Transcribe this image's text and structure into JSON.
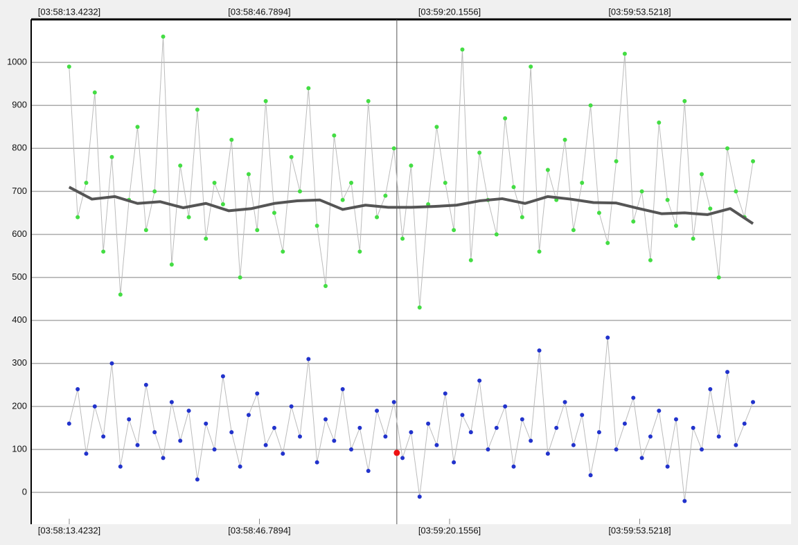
{
  "chart_data": {
    "type": "scatter",
    "xlim": [
      14286.74,
      14420.08
    ],
    "xticks": [
      {
        "value": 14293.4232,
        "label": "[03:58:13.4232]"
      },
      {
        "value": 14326.7894,
        "label": "[03:58:46.7894]"
      },
      {
        "value": 14360.1556,
        "label": "[03:59:20.1556]"
      },
      {
        "value": 14393.5218,
        "label": "[03:59:53.5218]"
      }
    ],
    "ylim": [
      -74,
      1100
    ],
    "yticks": [
      0,
      100,
      200,
      300,
      400,
      500,
      600,
      700,
      800,
      900,
      1000
    ],
    "grid": true,
    "line_color": "#bbbbbb",
    "x": [
      14293.4,
      14294.9,
      14296.4,
      14297.9,
      14299.4,
      14300.9,
      14302.4,
      14303.9,
      14305.4,
      14306.9,
      14308.4,
      14309.9,
      14311.4,
      14312.9,
      14314.4,
      14315.9,
      14317.4,
      14318.9,
      14320.4,
      14321.9,
      14323.4,
      14324.9,
      14326.4,
      14327.9,
      14329.4,
      14330.9,
      14332.4,
      14333.9,
      14335.4,
      14336.9,
      14338.4,
      14339.9,
      14341.4,
      14342.9,
      14344.4,
      14345.9,
      14347.4,
      14348.9,
      14350.4,
      14351.9,
      14353.4,
      14354.9,
      14356.4,
      14357.9,
      14359.4,
      14360.9,
      14362.4,
      14363.9,
      14365.4,
      14366.9,
      14368.4,
      14369.9,
      14371.4,
      14372.9,
      14374.4,
      14375.9,
      14377.4,
      14378.9,
      14380.4,
      14381.9,
      14383.4,
      14384.9,
      14386.4,
      14387.9,
      14389.4,
      14390.9,
      14392.4,
      14393.9,
      14395.4,
      14396.9,
      14398.4,
      14399.9,
      14401.4,
      14402.9,
      14404.4,
      14405.9,
      14407.4,
      14408.9,
      14410.4,
      14411.9,
      14413.4
    ],
    "series": [
      {
        "color": "#44dd44",
        "values": [
          990,
          640,
          720,
          930,
          560,
          780,
          460,
          680,
          850,
          610,
          700,
          1060,
          530,
          760,
          640,
          890,
          590,
          720,
          670,
          820,
          500,
          740,
          610,
          910,
          650,
          560,
          780,
          700,
          940,
          620,
          480,
          830,
          680,
          720,
          560,
          910,
          640,
          690,
          800,
          590,
          760,
          430,
          670,
          850,
          720,
          610,
          1030,
          540,
          790,
          680,
          600,
          870,
          710,
          640,
          990,
          560,
          750,
          680,
          820,
          610,
          720,
          900,
          650,
          580,
          770,
          1020,
          630,
          700,
          540,
          860,
          680,
          620,
          910,
          590,
          740,
          660,
          500,
          800,
          700,
          640,
          770
        ]
      },
      {
        "color": "#2233cc",
        "values": [
          160,
          240,
          90,
          200,
          130,
          300,
          60,
          170,
          110,
          250,
          140,
          80,
          210,
          120,
          190,
          30,
          160,
          100,
          270,
          140,
          60,
          180,
          230,
          110,
          150,
          90,
          200,
          130,
          310,
          70,
          170,
          120,
          240,
          100,
          150,
          50,
          190,
          130,
          210,
          80,
          140,
          -10,
          160,
          110,
          230,
          70,
          180,
          140,
          260,
          100,
          150,
          200,
          60,
          170,
          120,
          330,
          90,
          150,
          210,
          110,
          180,
          40,
          140,
          360,
          100,
          160,
          220,
          80,
          130,
          190,
          60,
          170,
          -20,
          150,
          100,
          240,
          130,
          280,
          110,
          160,
          210
        ]
      }
    ],
    "trend": {
      "color": "#555555",
      "x": [
        14293.4,
        14297.4,
        14301.4,
        14305.4,
        14309.4,
        14313.4,
        14317.4,
        14321.4,
        14325.4,
        14329.4,
        14333.4,
        14337.4,
        14341.4,
        14345.4,
        14349.4,
        14353.4,
        14357.4,
        14361.4,
        14365.4,
        14369.4,
        14373.4,
        14377.4,
        14381.4,
        14385.4,
        14389.4,
        14393.4,
        14397.4,
        14401.4,
        14405.4,
        14409.4,
        14413.4
      ],
      "values": [
        710,
        682,
        688,
        672,
        676,
        662,
        672,
        655,
        660,
        672,
        678,
        680,
        658,
        668,
        663,
        663,
        665,
        668,
        678,
        683,
        672,
        688,
        682,
        674,
        673,
        660,
        648,
        650,
        646,
        660,
        625
      ]
    },
    "highlight": {
      "x": 14350.9,
      "value": 92,
      "color": "#ee1111"
    }
  }
}
